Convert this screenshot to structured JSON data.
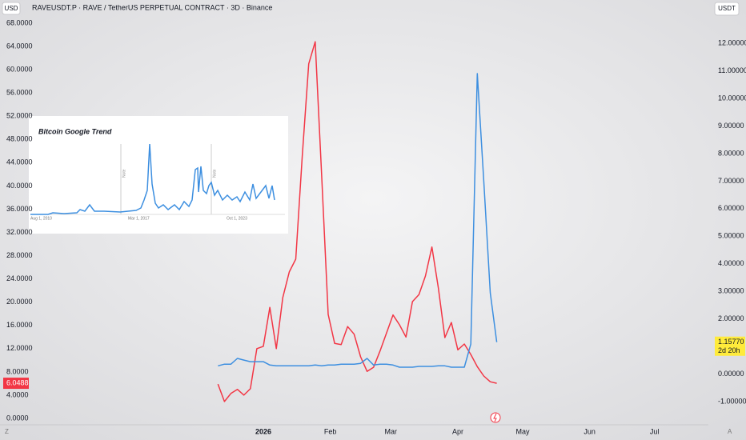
{
  "chart_data": {
    "type": "line",
    "title": "RAVEUSDT.P · RAVE / TetherUS PERPETUAL CONTRACT · 3D · Binance",
    "y_unit": "USD",
    "y2_unit": "USDT",
    "countdown": "2d 20h",
    "x": [
      -21,
      -18,
      -15,
      -12,
      -9,
      -6,
      -3,
      0,
      3,
      6,
      9,
      12,
      15,
      18,
      21,
      24,
      27,
      30,
      33,
      36,
      39,
      42,
      45,
      48,
      51,
      54,
      57,
      60,
      63,
      66,
      69,
      72,
      75,
      78,
      81,
      84,
      87,
      90,
      93,
      96,
      99,
      102,
      105,
      108
    ],
    "xlim": [
      -121.85,
      205.93
    ],
    "xticks": [
      {
        "value": 0,
        "label": "2026"
      },
      {
        "value": 31,
        "label": "Feb"
      },
      {
        "value": 59,
        "label": "Mar"
      },
      {
        "value": 90,
        "label": "Apr"
      },
      {
        "value": 120,
        "label": "May"
      },
      {
        "value": 151,
        "label": "Jun"
      },
      {
        "value": 181,
        "label": "Jul"
      }
    ],
    "ylim": [
      -2.34,
      71.99
    ],
    "yticks": [
      {
        "value": 0,
        "label": "0.0000"
      },
      {
        "value": 4,
        "label": "4.0000"
      },
      {
        "value": 8,
        "label": "8.0000"
      },
      {
        "value": 12,
        "label": "12.0000"
      },
      {
        "value": 16,
        "label": "16.0000"
      },
      {
        "value": 20,
        "label": "20.0000"
      },
      {
        "value": 24,
        "label": "24.0000"
      },
      {
        "value": 28,
        "label": "28.0000"
      },
      {
        "value": 32,
        "label": "32.0000"
      },
      {
        "value": 36,
        "label": "36.0000"
      },
      {
        "value": 40,
        "label": "40.0000"
      },
      {
        "value": 44,
        "label": "44.0000"
      },
      {
        "value": 48,
        "label": "48.0000"
      },
      {
        "value": 52,
        "label": "52.0000"
      },
      {
        "value": 56,
        "label": "56.0000"
      },
      {
        "value": 60,
        "label": "60.0000"
      },
      {
        "value": 64,
        "label": "64.0000"
      },
      {
        "value": 68,
        "label": "68.0000"
      }
    ],
    "y2lim": [
      -2.1,
      13.57
    ],
    "y2ticks": [
      {
        "value": -1,
        "label": "-1.00000"
      },
      {
        "value": 0,
        "label": "0.00000"
      },
      {
        "value": 1,
        "label": "1.00000"
      },
      {
        "value": 2,
        "label": "2.00000"
      },
      {
        "value": 3,
        "label": "3.00000"
      },
      {
        "value": 4,
        "label": "4.00000"
      },
      {
        "value": 5,
        "label": "5.00000"
      },
      {
        "value": 6,
        "label": "6.00000"
      },
      {
        "value": 7,
        "label": "7.00000"
      },
      {
        "value": 8,
        "label": "8.00000"
      },
      {
        "value": 9,
        "label": "9.00000"
      },
      {
        "value": 10,
        "label": "10.00000"
      },
      {
        "value": 11,
        "label": "11.00000"
      },
      {
        "value": 12,
        "label": "12.00000"
      }
    ],
    "grid": false,
    "series": [
      {
        "color": "#f23645",
        "axis": "y",
        "price_label": "6.0488",
        "values": [
          5.9,
          2.9,
          4.3,
          5.0,
          4.0,
          5.1,
          12.0,
          12.4,
          19.1,
          12.0,
          20.8,
          25.2,
          27.4,
          45.1,
          61.0,
          64.8,
          41.7,
          17.9,
          12.9,
          12.7,
          15.8,
          14.5,
          10.6,
          8.1,
          8.8,
          11.6,
          14.7,
          17.8,
          16.1,
          14.0,
          20.1,
          21.3,
          24.5,
          29.5,
          22.4,
          13.9,
          16.5,
          11.8,
          12.8,
          11.0,
          8.9,
          7.3,
          6.3,
          6.0488
        ]
      },
      {
        "color": "#3d8fe0",
        "axis": "y2",
        "price_label": "1.15770",
        "values": [
          0.3,
          0.36,
          0.36,
          0.57,
          0.51,
          0.45,
          0.45,
          0.45,
          0.33,
          0.3,
          0.3,
          0.3,
          0.3,
          0.3,
          0.3,
          0.33,
          0.3,
          0.33,
          0.33,
          0.36,
          0.36,
          0.36,
          0.39,
          0.57,
          0.33,
          0.36,
          0.36,
          0.33,
          0.25,
          0.25,
          0.25,
          0.28,
          0.28,
          0.28,
          0.3,
          0.3,
          0.25,
          0.25,
          0.25,
          1.09,
          10.9,
          7.0,
          2.95,
          1.1577
        ]
      }
    ]
  },
  "inset": {
    "title": "Bitcoin Google Trend",
    "x_labels": [
      "Aug 1, 2010",
      "Mar 1, 2017",
      "Oct 1, 2023"
    ],
    "notes": [
      "Note",
      "Note"
    ]
  }
}
